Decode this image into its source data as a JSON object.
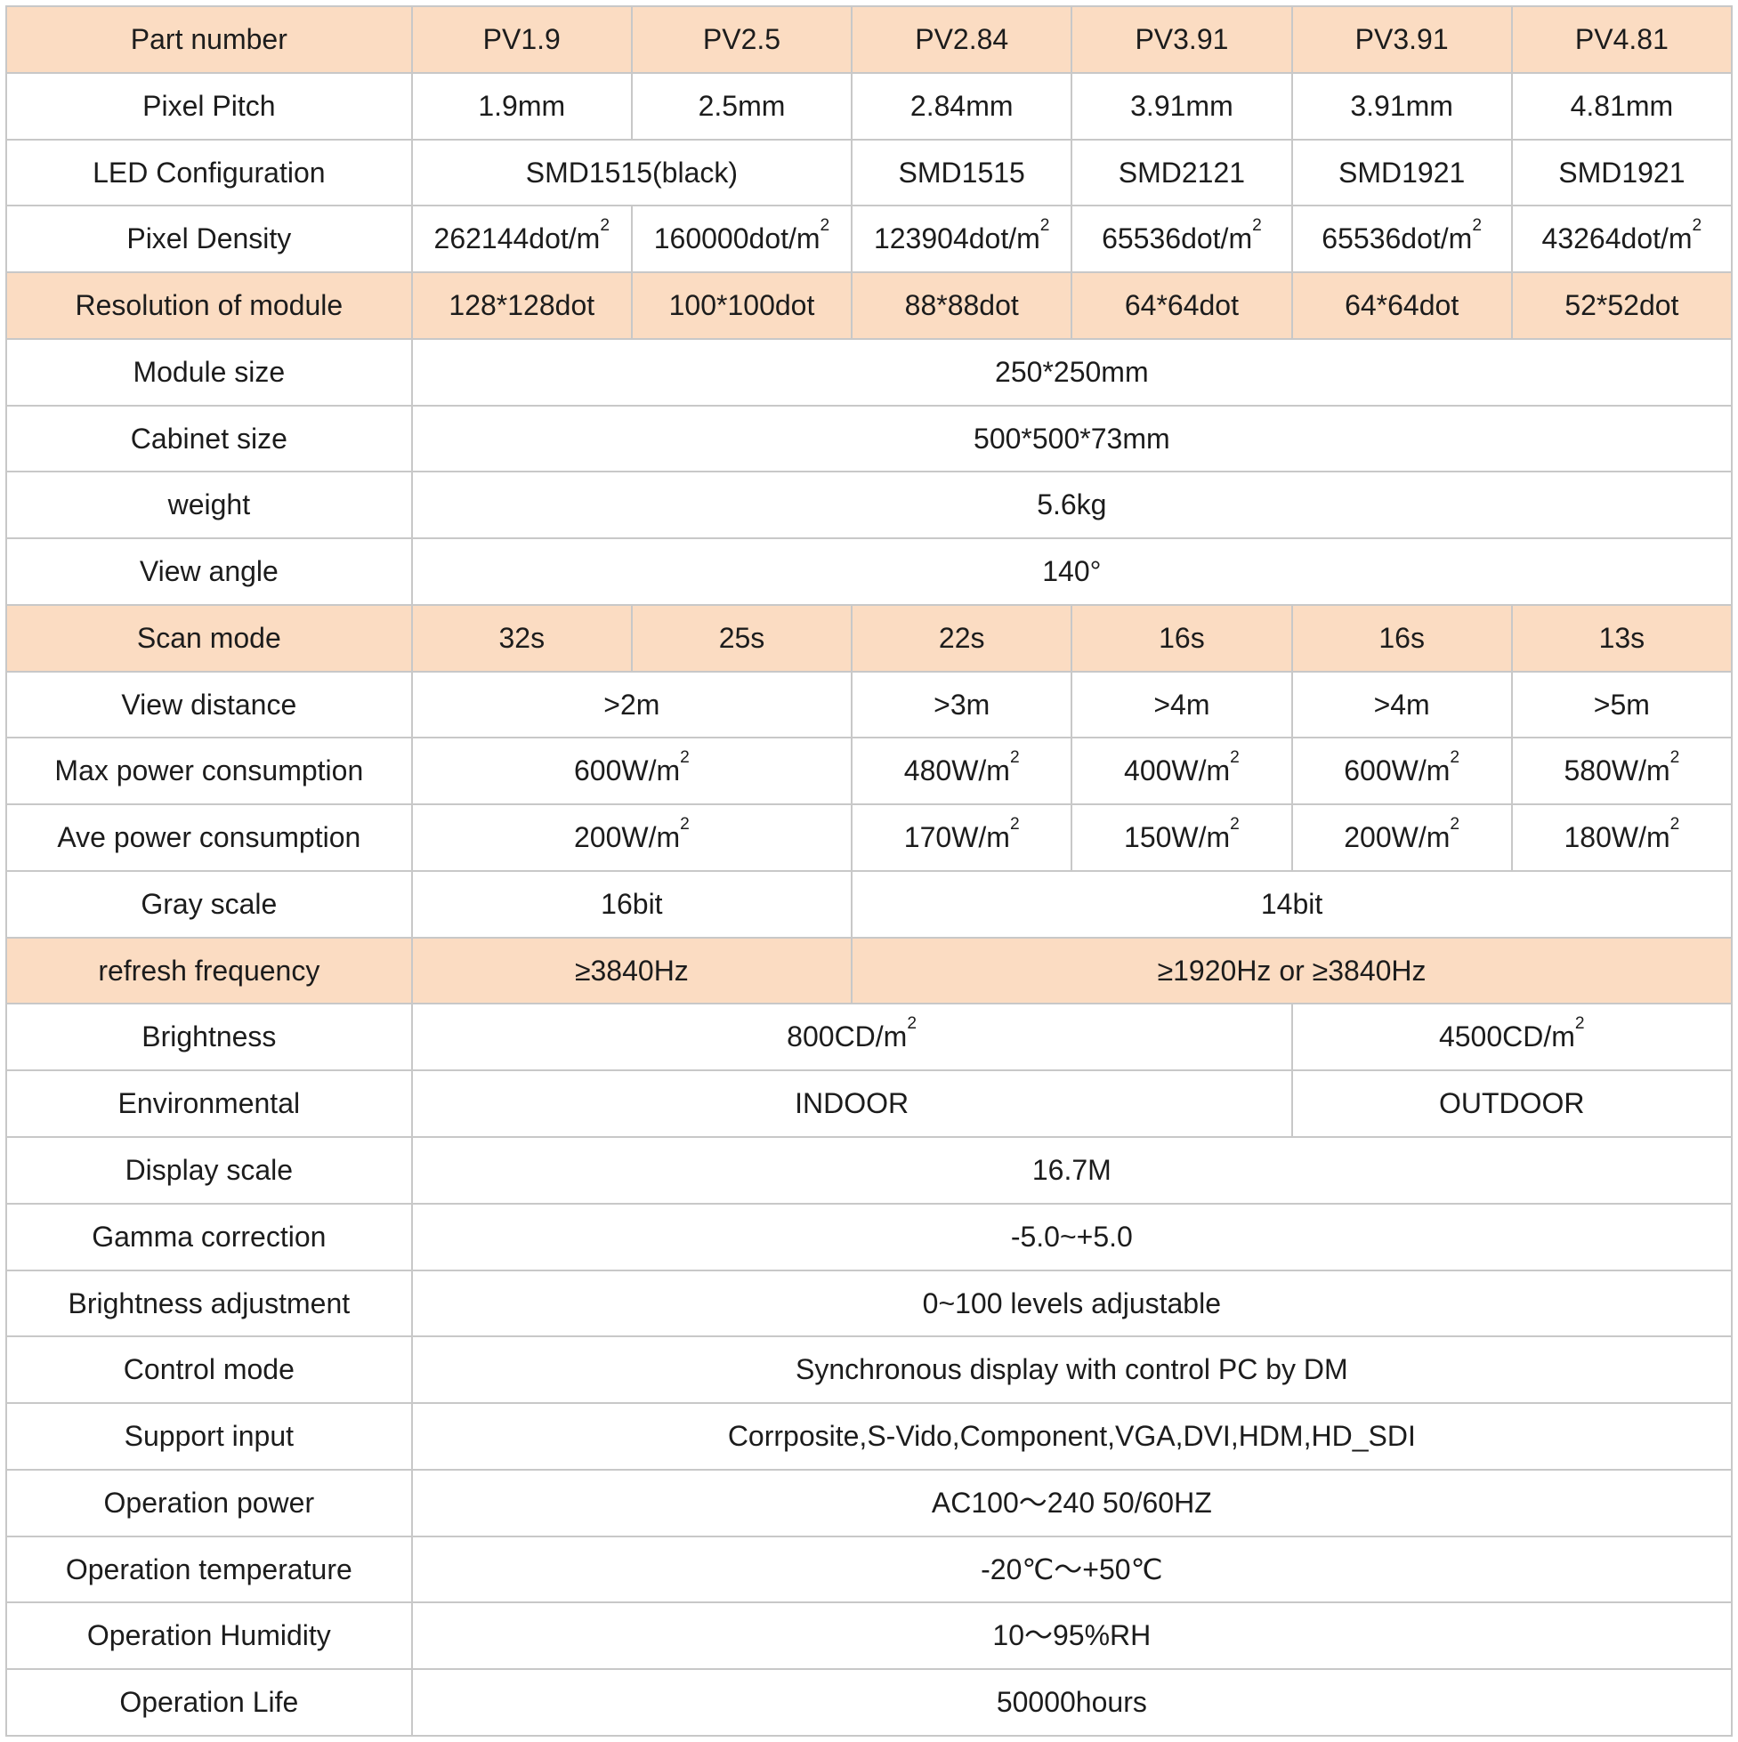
{
  "colors": {
    "header_bg": "#fbdcc2",
    "border": "#c8c8c8",
    "text": "#1c1c1c",
    "background": "#ffffff"
  },
  "table": {
    "columns": 7,
    "rows": [
      {
        "label": "Part number",
        "header": true,
        "cells": [
          {
            "text": "PV1.9"
          },
          {
            "text": "PV2.5"
          },
          {
            "text": "PV2.84"
          },
          {
            "text": "PV3.91"
          },
          {
            "text": "PV3.91"
          },
          {
            "text": "PV4.81"
          }
        ]
      },
      {
        "label": "Pixel Pitch",
        "header": false,
        "cells": [
          {
            "text": "1.9mm"
          },
          {
            "text": "2.5mm"
          },
          {
            "text": "2.84mm"
          },
          {
            "text": "3.91mm"
          },
          {
            "text": "3.91mm"
          },
          {
            "text": "4.81mm"
          }
        ]
      },
      {
        "label": "LED Configuration",
        "header": false,
        "cells": [
          {
            "text": "SMD1515(black)",
            "span": 2
          },
          {
            "text": "SMD1515"
          },
          {
            "text": "SMD2121"
          },
          {
            "text": "SMD1921"
          },
          {
            "text": "SMD1921"
          }
        ]
      },
      {
        "label": "Pixel Density",
        "header": false,
        "cells": [
          {
            "text": "262144dot/m^2"
          },
          {
            "text": "160000dot/m^2"
          },
          {
            "text": "123904dot/m^2"
          },
          {
            "text": "65536dot/m^2"
          },
          {
            "text": "65536dot/m^2"
          },
          {
            "text": "43264dot/m^2"
          }
        ]
      },
      {
        "label": "Resolution of module",
        "header": true,
        "cells": [
          {
            "text": "128*128dot"
          },
          {
            "text": "100*100dot"
          },
          {
            "text": "88*88dot"
          },
          {
            "text": "64*64dot"
          },
          {
            "text": "64*64dot"
          },
          {
            "text": "52*52dot"
          }
        ]
      },
      {
        "label": "Module size",
        "header": false,
        "cells": [
          {
            "text": "250*250mm",
            "span": 6
          }
        ]
      },
      {
        "label": "Cabinet size",
        "header": false,
        "cells": [
          {
            "text": "500*500*73mm",
            "span": 6
          }
        ]
      },
      {
        "label": "weight",
        "header": false,
        "cells": [
          {
            "text": "5.6kg",
            "span": 6
          }
        ]
      },
      {
        "label": "View angle",
        "header": false,
        "cells": [
          {
            "text": "140°",
            "span": 6
          }
        ]
      },
      {
        "label": "Scan mode",
        "header": true,
        "cells": [
          {
            "text": "32s"
          },
          {
            "text": "25s"
          },
          {
            "text": "22s"
          },
          {
            "text": "16s"
          },
          {
            "text": "16s"
          },
          {
            "text": "13s"
          }
        ]
      },
      {
        "label": "View distance",
        "header": false,
        "cells": [
          {
            "text": ">2m",
            "span": 2
          },
          {
            "text": ">3m"
          },
          {
            "text": ">4m"
          },
          {
            "text": ">4m"
          },
          {
            "text": ">5m"
          }
        ]
      },
      {
        "label": "Max power consumption",
        "header": false,
        "cells": [
          {
            "text": "600W/m^2",
            "span": 2
          },
          {
            "text": "480W/m^2"
          },
          {
            "text": "400W/m^2"
          },
          {
            "text": "600W/m^2"
          },
          {
            "text": "580W/m^2"
          }
        ]
      },
      {
        "label": "Ave power consumption",
        "header": false,
        "cells": [
          {
            "text": "200W/m^2",
            "span": 2
          },
          {
            "text": "170W/m^2"
          },
          {
            "text": "150W/m^2"
          },
          {
            "text": "200W/m^2"
          },
          {
            "text": "180W/m^2"
          }
        ]
      },
      {
        "label": "Gray scale",
        "header": false,
        "cells": [
          {
            "text": "16bit",
            "span": 2
          },
          {
            "text": "14bit",
            "span": 4
          }
        ]
      },
      {
        "label": "refresh frequency",
        "header": true,
        "cells": [
          {
            "text": "≥3840Hz",
            "span": 2
          },
          {
            "text": "≥1920Hz or ≥3840Hz",
            "span": 4
          }
        ]
      },
      {
        "label": "Brightness",
        "header": false,
        "cells": [
          {
            "text": "800CD/m^2",
            "span": 4
          },
          {
            "text": "4500CD/m^2",
            "span": 2
          }
        ]
      },
      {
        "label": "Environmental",
        "header": false,
        "cells": [
          {
            "text": "INDOOR",
            "span": 4
          },
          {
            "text": "OUTDOOR",
            "span": 2
          }
        ]
      },
      {
        "label": "Display scale",
        "header": false,
        "cells": [
          {
            "text": "16.7M",
            "span": 6
          }
        ]
      },
      {
        "label": "Gamma correction",
        "header": false,
        "cells": [
          {
            "text": "-5.0~+5.0",
            "span": 6
          }
        ]
      },
      {
        "label": "Brightness adjustment",
        "header": false,
        "cells": [
          {
            "text": "0~100 levels adjustable",
            "span": 6
          }
        ]
      },
      {
        "label": "Control mode",
        "header": false,
        "cells": [
          {
            "text": "Synchronous display with control PC by DM",
            "span": 6
          }
        ]
      },
      {
        "label": "Support input",
        "header": false,
        "cells": [
          {
            "text": "Corrposite,S-Vido,Component,VGA,DVI,HDM,HD_SDI",
            "span": 6
          }
        ]
      },
      {
        "label": "Operation power",
        "header": false,
        "cells": [
          {
            "text": "AC100～240 50/60HZ",
            "span": 6
          }
        ]
      },
      {
        "label": "Operation temperature",
        "header": false,
        "cells": [
          {
            "text": "-20℃～+50℃",
            "span": 6
          }
        ]
      },
      {
        "label": "Operation Humidity",
        "header": false,
        "cells": [
          {
            "text": "10～95%RH",
            "span": 6
          }
        ]
      },
      {
        "label": "Operation Life",
        "header": false,
        "cells": [
          {
            "text": "50000hours",
            "span": 6
          }
        ]
      }
    ]
  }
}
